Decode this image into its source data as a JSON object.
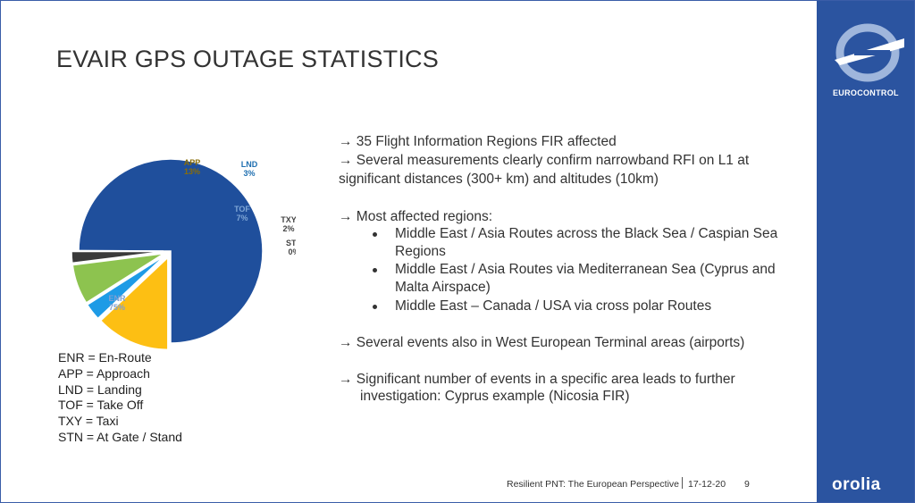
{
  "slide": {
    "title": "EVAIR GPS OUTAGE STATISTICS"
  },
  "chart_data": {
    "type": "pie",
    "categories": [
      "ENR",
      "APP",
      "LND",
      "TOF",
      "TXY",
      "STN"
    ],
    "values": [
      75,
      13,
      3,
      7,
      2,
      0
    ],
    "labels": [
      "75%",
      "13%",
      "3%",
      "7%",
      "2%",
      "0%"
    ],
    "colors": [
      "#1f4f9c",
      "#fdbf13",
      "#1e9be6",
      "#8dc34f",
      "#3a3a3a",
      "#888888"
    ]
  },
  "legend": [
    "ENR =  En-Route",
    "APP = Approach",
    "LND = Landing",
    "TOF = Take Off",
    "TXY = Taxi",
    "STN = At Gate / Stand"
  ],
  "bullets": {
    "b1": "→ 35 Flight Information Regions FIR affected",
    "b2a": "→ Several measurements clearly confirm narrowband RFI on L1 at",
    "b2b": "significant distances (300+ km) and altitudes (10km)",
    "b3": "→ Most affected regions:",
    "s1a": "Middle East / Asia Routes across the Black Sea / Caspian Sea",
    "s1b": "Regions",
    "s2a": "Middle East / Asia Routes via Mediterranean Sea (Cyprus and",
    "s2b": "Malta Airspace)",
    "s3": "Middle East – Canada / USA via cross polar Routes",
    "b4": "→  Several events also in West European Terminal areas (airports)",
    "b5a": "→  Significant number of events in a specific area leads to further",
    "b5b": "investigation: Cyprus example (Nicosia FIR)"
  },
  "footer": {
    "presentation": "Resilient PNT: The European Perspective",
    "date": "17-12-20",
    "page": "9"
  },
  "branding": {
    "org": "EUROCONTROL",
    "partner": "orolia"
  }
}
